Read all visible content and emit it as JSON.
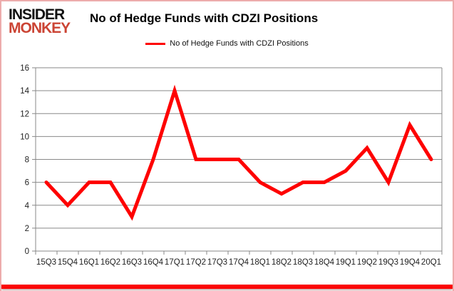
{
  "logo": {
    "line1": "INSIDER",
    "line2": "MONKEY"
  },
  "title": "No of Hedge Funds with CDZI Positions",
  "legend": {
    "label": "No of Hedge Funds with CDZI Positions"
  },
  "colors": {
    "line": "#fe0000",
    "grid": "#898989",
    "axis_text": "#1f1f1f",
    "logo_black": "#111111",
    "logo_red": "#cb4434",
    "frame_border": "#edacac",
    "bottom_bar": "#fb0505"
  },
  "chart_data": {
    "type": "line",
    "title": "No of Hedge Funds with CDZI Positions",
    "categories": [
      "15Q3",
      "15Q4",
      "16Q1",
      "16Q2",
      "16Q3",
      "16Q4",
      "17Q1",
      "17Q2",
      "17Q3",
      "17Q4",
      "18Q1",
      "18Q2",
      "18Q3",
      "18Q4",
      "19Q1",
      "19Q2",
      "19Q3",
      "19Q4",
      "20Q1"
    ],
    "series": [
      {
        "name": "No of Hedge Funds with CDZI Positions",
        "values": [
          6,
          4,
          6,
          6,
          3,
          8,
          14,
          8,
          8,
          8,
          6,
          5,
          6,
          6,
          7,
          9,
          6,
          11,
          8
        ]
      }
    ],
    "xlabel": "",
    "ylabel": "",
    "ylim": [
      0,
      16
    ],
    "yticks": [
      0,
      2,
      4,
      6,
      8,
      10,
      12,
      14,
      16
    ],
    "grid": "horizontal",
    "legend_position": "top"
  }
}
